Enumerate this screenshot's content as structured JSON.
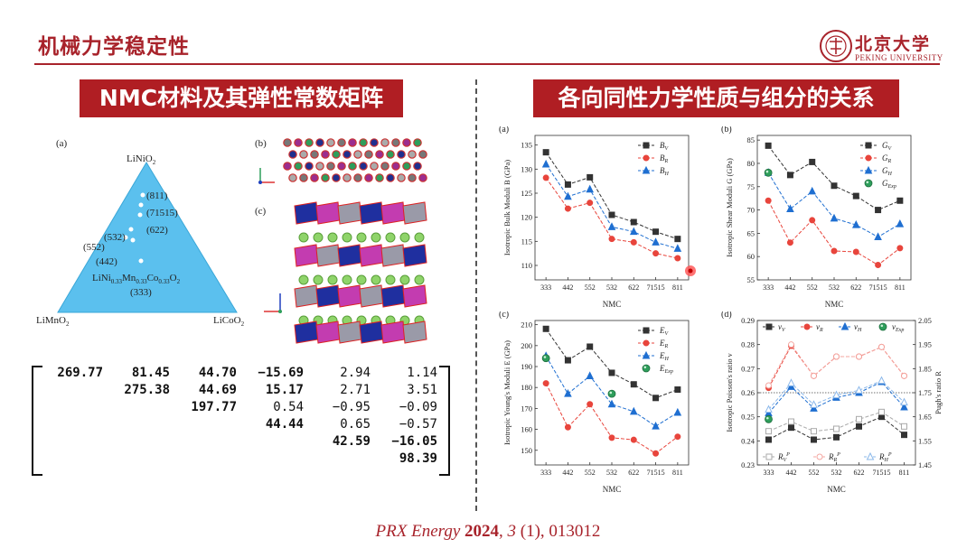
{
  "header": {
    "title": "机械力学稳定性",
    "logo_text": "北京大学",
    "logo_sub": "PEKING UNIVERSITY",
    "colors": {
      "accent": "#a8232b",
      "banner": "#b01e23"
    }
  },
  "left_section": {
    "banner": "NMC材料及其弹性常数矩阵",
    "panel_a": {
      "label": "(a)",
      "vertex_top": "LiNiO",
      "vertex_left": "LiMnO",
      "vertex_right": "LiCoO",
      "vertex_sub": "2",
      "points": [
        "(811)",
        "(71515)",
        "(622)",
        "(532)",
        "(552)",
        "(442)",
        "(333)"
      ],
      "formula": {
        "a": "LiNi",
        "s1": "0.33",
        "b": "Mn",
        "s2": "0.33",
        "c": "Co",
        "s3": "0.33",
        "d": "O",
        "s4": "2"
      }
    },
    "panel_b_label": "(b)",
    "panel_c_label": "(c)",
    "matrix": {
      "rows": [
        [
          "269.77",
          "81.45",
          "44.70",
          "−15.69",
          "2.94",
          "1.14"
        ],
        [
          "",
          "275.38",
          "44.69",
          "15.17",
          "2.71",
          "3.51"
        ],
        [
          "",
          "",
          "197.77",
          "0.54",
          "−0.95",
          "−0.09"
        ],
        [
          "",
          "",
          "",
          "44.44",
          "0.65",
          "−0.57"
        ],
        [
          "",
          "",
          "",
          "",
          "42.59",
          "−16.05"
        ],
        [
          "",
          "",
          "",
          "",
          "",
          "98.39"
        ]
      ],
      "bold_cells": [
        [
          0,
          0
        ],
        [
          0,
          1
        ],
        [
          0,
          2
        ],
        [
          0,
          3
        ],
        [
          1,
          1
        ],
        [
          1,
          2
        ],
        [
          1,
          3
        ],
        [
          2,
          2
        ],
        [
          3,
          3
        ],
        [
          4,
          4
        ],
        [
          4,
          5
        ],
        [
          5,
          5
        ]
      ]
    }
  },
  "right_section": {
    "banner": "各向同性力学性质与组分的关系"
  },
  "citation": {
    "journal": "PRX Energy",
    "year": "2024",
    "volume": "3",
    "rest": "(1), 013012"
  },
  "chart_data": [
    {
      "type": "line",
      "panel": "(a)",
      "ylabel": "Isotropic Bulk Moduli B (GPa)",
      "xlabel": "NMC",
      "categories": [
        "333",
        "442",
        "552",
        "532",
        "622",
        "71515",
        "811"
      ],
      "ylim": [
        107,
        137
      ],
      "yticks": [
        110,
        115,
        120,
        125,
        130,
        135
      ],
      "series": [
        {
          "name": "B_V",
          "color": "#333333",
          "marker": "square",
          "values": [
            133.5,
            126.8,
            128.3,
            120.5,
            119.0,
            117.0,
            115.5
          ]
        },
        {
          "name": "B_R",
          "color": "#e8453c",
          "marker": "circle",
          "values": [
            128.2,
            121.8,
            123.0,
            115.5,
            114.8,
            112.5,
            111.5
          ]
        },
        {
          "name": "B_H",
          "color": "#1f6fd1",
          "marker": "triangle",
          "values": [
            131.0,
            124.3,
            125.8,
            118.0,
            117.0,
            114.8,
            113.5
          ]
        }
      ]
    },
    {
      "type": "line",
      "panel": "(b)",
      "ylabel": "Isotropic Shear Moduli G (GPa)",
      "xlabel": "NMC",
      "categories": [
        "333",
        "442",
        "552",
        "532",
        "622",
        "71515",
        "811"
      ],
      "ylim": [
        55,
        86
      ],
      "yticks": [
        55,
        60,
        65,
        70,
        75,
        80,
        85
      ],
      "series": [
        {
          "name": "G_V",
          "color": "#333333",
          "marker": "square",
          "values": [
            83.8,
            77.5,
            80.3,
            75.2,
            73.0,
            70.0,
            72.0
          ]
        },
        {
          "name": "G_R",
          "color": "#e8453c",
          "marker": "circle",
          "values": [
            72.0,
            63.0,
            67.8,
            61.2,
            61.0,
            58.2,
            61.8
          ]
        },
        {
          "name": "G_H",
          "color": "#1f6fd1",
          "marker": "triangle",
          "values": [
            78.0,
            70.2,
            74.0,
            68.2,
            66.8,
            64.2,
            67.0
          ]
        },
        {
          "name": "G_Exp",
          "color": "#2e9e5b",
          "marker": "sphere",
          "values": [
            78.0,
            null,
            null,
            null,
            null,
            null,
            null
          ]
        }
      ]
    },
    {
      "type": "line",
      "panel": "(c)",
      "ylabel": "Isotropic Young's Moduli E (GPa)",
      "xlabel": "NMC",
      "categories": [
        "333",
        "442",
        "552",
        "532",
        "622",
        "71515",
        "811"
      ],
      "ylim": [
        143,
        212
      ],
      "yticks": [
        150,
        160,
        170,
        180,
        190,
        200,
        210
      ],
      "series": [
        {
          "name": "E_V",
          "color": "#333333",
          "marker": "square",
          "values": [
            208.0,
            193.0,
            199.5,
            187.0,
            181.5,
            175.0,
            179.0
          ]
        },
        {
          "name": "E_R",
          "color": "#e8453c",
          "marker": "circle",
          "values": [
            182.0,
            161.0,
            172.0,
            156.0,
            155.0,
            148.5,
            156.5
          ]
        },
        {
          "name": "E_H",
          "color": "#1f6fd1",
          "marker": "triangle",
          "values": [
            195.0,
            177.0,
            185.5,
            172.0,
            168.5,
            161.5,
            168.0
          ]
        },
        {
          "name": "E_Exp",
          "color": "#2e9e5b",
          "marker": "sphere",
          "values": [
            194.0,
            null,
            null,
            177.0,
            null,
            null,
            null
          ]
        }
      ]
    },
    {
      "type": "line",
      "panel": "(d)",
      "ylabel": "Isotropic Poisson's ratio ν",
      "y2label": "Pugh's ratio R",
      "xlabel": "NMC",
      "categories": [
        "333",
        "442",
        "552",
        "532",
        "622",
        "71515",
        "811"
      ],
      "ylim": [
        0.23,
        0.29
      ],
      "yticks": [
        "0.23",
        "0.24",
        "0.25",
        "0.26",
        "0.27",
        "0.28",
        "0.29"
      ],
      "y2lim": [
        1.45,
        2.05
      ],
      "y2ticks": [
        "1.45",
        "1.55",
        "1.65",
        "1.75",
        "1.85",
        "1.95",
        "2.05"
      ],
      "reference_line_y": 0.26,
      "series": [
        {
          "name": "ν_V",
          "color": "#333333",
          "marker": "square",
          "values": [
            0.2405,
            0.2455,
            0.2405,
            0.2415,
            0.246,
            0.25,
            0.2425
          ]
        },
        {
          "name": "ν_R",
          "color": "#e8453c",
          "marker": "circle",
          "values": [
            0.262,
            0.2795,
            0.267,
            0.275,
            0.275,
            0.279,
            0.267
          ]
        },
        {
          "name": "ν_H",
          "color": "#1f6fd1",
          "marker": "triangle",
          "values": [
            0.2515,
            0.2625,
            0.2535,
            0.258,
            0.26,
            0.2645,
            0.254
          ]
        },
        {
          "name": "ν_Exp",
          "color": "#2e9e5b",
          "marker": "sphere",
          "values": [
            0.249,
            null,
            null,
            null,
            null,
            null,
            null
          ]
        },
        {
          "name": "R_V^P",
          "color": "#aaaaaa",
          "marker": "open-square",
          "axis": "right",
          "values": [
            1.59,
            1.63,
            1.59,
            1.6,
            1.64,
            1.67,
            1.61
          ]
        },
        {
          "name": "R_R^P",
          "color": "#f4a7a1",
          "marker": "open-circle",
          "axis": "right",
          "values": [
            1.78,
            1.95,
            1.82,
            1.9,
            1.9,
            1.94,
            1.82
          ]
        },
        {
          "name": "R_H^P",
          "color": "#8bb8ea",
          "marker": "open-triangle",
          "axis": "right",
          "values": [
            1.68,
            1.79,
            1.7,
            1.74,
            1.76,
            1.8,
            1.71
          ]
        }
      ]
    }
  ]
}
